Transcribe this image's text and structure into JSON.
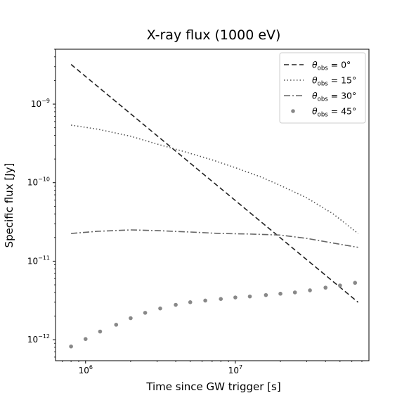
{
  "chart_data": {
    "type": "line",
    "title": "X-ray flux (1000 eV)",
    "xlabel": "Time since GW trigger [s]",
    "ylabel": "Specific flux [Jy]",
    "xscale": "log",
    "yscale": "log",
    "xlim": [
      630000,
      78000000
    ],
    "ylim": [
      5.4e-13,
      5e-09
    ],
    "x_ticks": [
      {
        "value": 1000000,
        "base": "10",
        "exp": "6"
      },
      {
        "value": 10000000,
        "base": "10",
        "exp": "7"
      }
    ],
    "y_ticks": [
      {
        "value": 1e-12,
        "base": "10",
        "exp": "−12"
      },
      {
        "value": 1e-11,
        "base": "10",
        "exp": "−11"
      },
      {
        "value": 1e-10,
        "base": "10",
        "exp": "−10"
      },
      {
        "value": 1e-09,
        "base": "10",
        "exp": "−9"
      }
    ],
    "grid": false,
    "legend_position": "top-right",
    "series": [
      {
        "name": "θobs = 0°",
        "name_symbol": "θ",
        "name_sub": "obs",
        "name_rest": " = 0°",
        "style": "dashed",
        "color": "#222222",
        "x": [
          800000,
          66000000
        ],
        "y": [
          3.2e-09,
          3e-12
        ]
      },
      {
        "name": "θobs = 15°",
        "name_symbol": "θ",
        "name_sub": "obs",
        "name_rest": " = 15°",
        "style": "dotted",
        "color": "#555555",
        "x": [
          800000,
          1200000,
          2000000,
          3000000,
          4500000,
          7000000,
          10000000,
          15000000,
          20000000,
          30000000,
          45000000,
          66000000
        ],
        "y": [
          5.4e-10,
          4.8e-10,
          3.9e-10,
          3.1e-10,
          2.5e-10,
          1.95e-10,
          1.55e-10,
          1.17e-10,
          9.2e-11,
          6.4e-11,
          4e-11,
          2.25e-11
        ]
      },
      {
        "name": "θobs = 30°",
        "name_symbol": "θ",
        "name_sub": "obs",
        "name_rest": " = 30°",
        "style": "dashdot",
        "color": "#666666",
        "x": [
          800000,
          1200000,
          2000000,
          3000000,
          5000000,
          8000000,
          12000000,
          20000000,
          30000000,
          45000000,
          66000000
        ],
        "y": [
          2.25e-11,
          2.4e-11,
          2.5e-11,
          2.45e-11,
          2.35e-11,
          2.25e-11,
          2.22e-11,
          2.15e-11,
          1.95e-11,
          1.7e-11,
          1.5e-11
        ]
      },
      {
        "name": "θobs = 45°",
        "name_symbol": "θ",
        "name_sub": "obs",
        "name_rest": " = 45°",
        "style": "points",
        "color": "#888888",
        "x": [
          800000,
          1000000,
          1250000,
          1600000,
          2000000,
          2500000,
          3150000,
          4000000,
          5000000,
          6300000,
          8000000,
          10000000,
          12500000,
          16000000,
          20000000,
          25000000,
          31500000,
          40000000,
          50000000,
          63000000
        ],
        "y": [
          8.2e-13,
          1.02e-12,
          1.27e-12,
          1.55e-12,
          1.88e-12,
          2.2e-12,
          2.5e-12,
          2.78e-12,
          3e-12,
          3.15e-12,
          3.3e-12,
          3.45e-12,
          3.55e-12,
          3.7e-12,
          3.85e-12,
          4e-12,
          4.25e-12,
          4.6e-12,
          4.9e-12,
          5.3e-12
        ]
      }
    ]
  }
}
